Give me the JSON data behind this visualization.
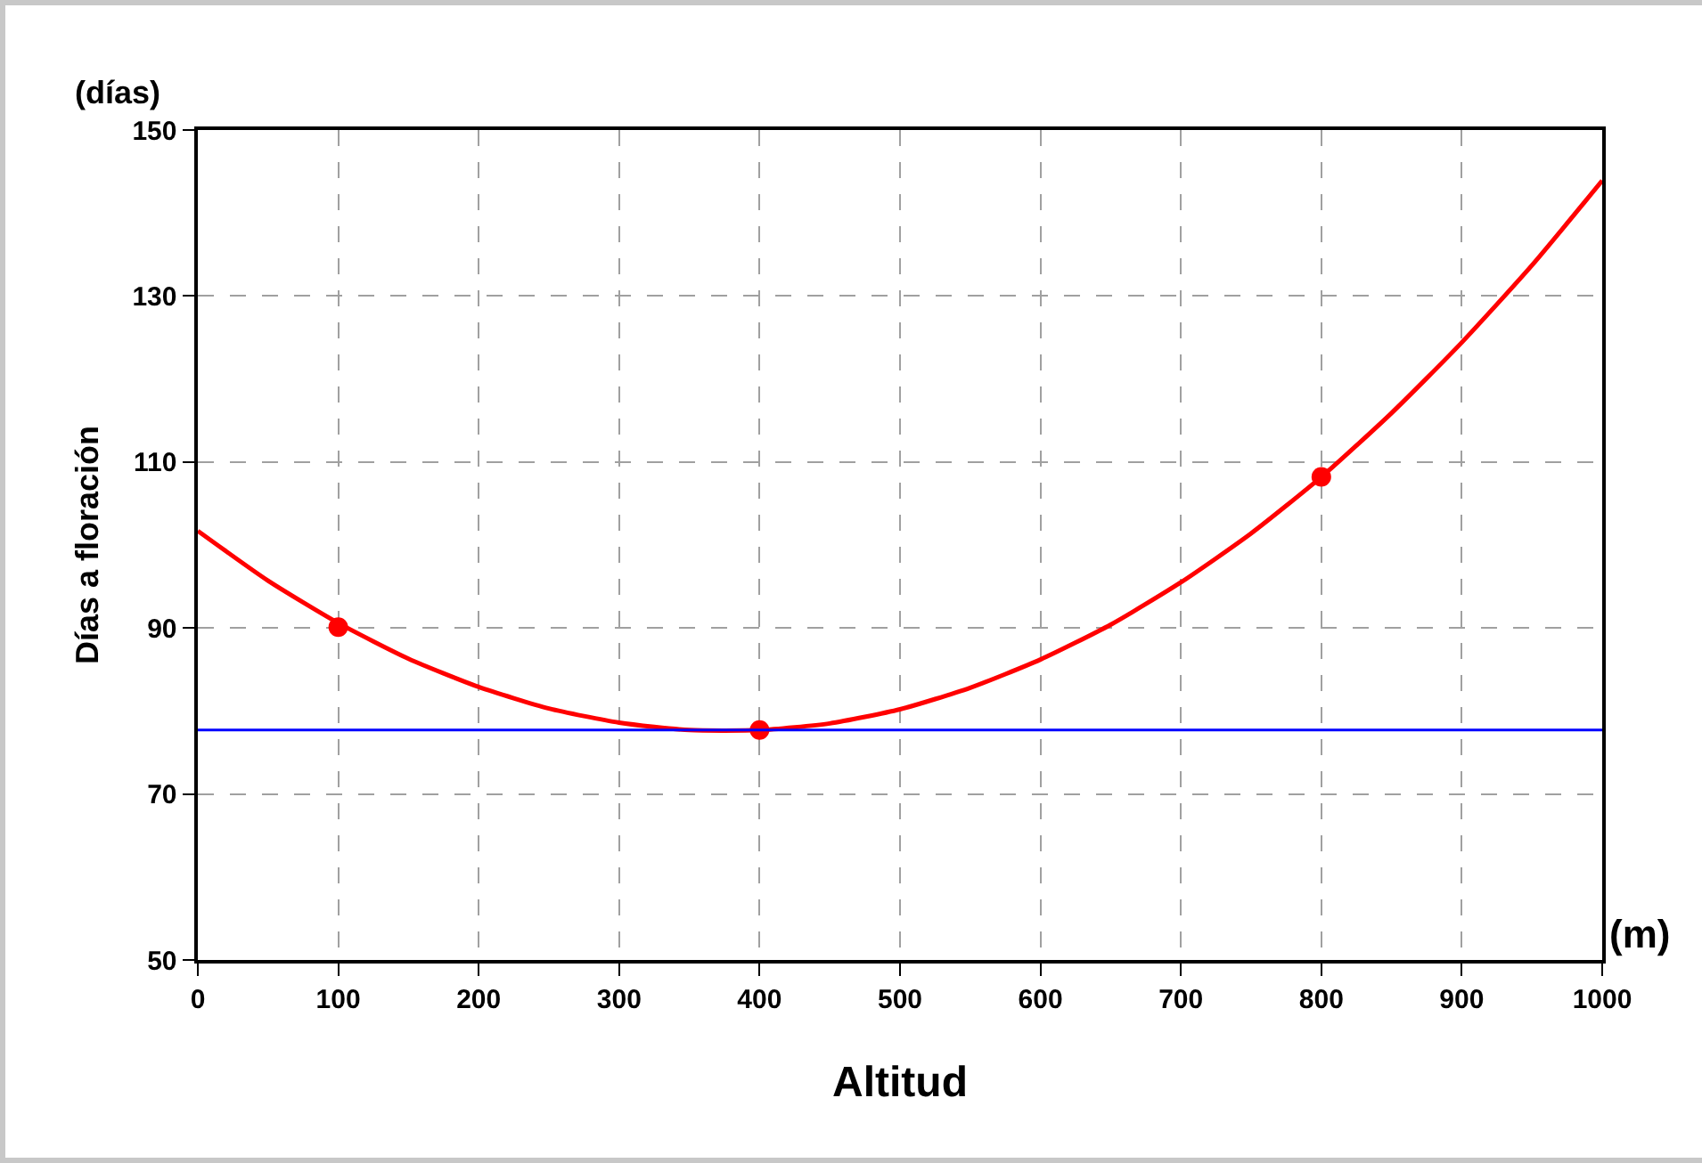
{
  "chart_data": {
    "type": "line",
    "xlabel": "Altitud",
    "ylabel": "Días a floración",
    "annotations": [
      "(días)",
      "(m)"
    ],
    "x": [
      0,
      50,
      100,
      150,
      200,
      250,
      300,
      350,
      400,
      450,
      500,
      550,
      600,
      650,
      700,
      750,
      800,
      850,
      900,
      950,
      1000
    ],
    "series": [
      {
        "type": "line",
        "color": "#ff0000",
        "marker": "none",
        "values": [
          101.7,
          95.7,
          90.6,
          86.3,
          82.9,
          80.3,
          78.6,
          77.7,
          77.7,
          78.5,
          80.2,
          82.8,
          86.2,
          90.4,
          95.5,
          101.4,
          108.2,
          115.9,
          124.4,
          133.7,
          143.9
        ]
      },
      {
        "type": "scatter",
        "color": "#ff0000",
        "marker": "circle",
        "x": [
          100,
          400,
          800
        ],
        "values": [
          90.1,
          77.7,
          108.2
        ]
      }
    ],
    "ref_lines": [
      {
        "axis": "y",
        "value": 77.7,
        "color": "#0000ff"
      }
    ],
    "xlim": [
      0,
      1000
    ],
    "xticks": [
      0,
      100,
      200,
      300,
      400,
      500,
      600,
      700,
      800,
      900,
      1000
    ],
    "ylim": [
      50,
      150
    ],
    "yticks": [
      50,
      70,
      90,
      110,
      130,
      150
    ],
    "grid": true
  }
}
